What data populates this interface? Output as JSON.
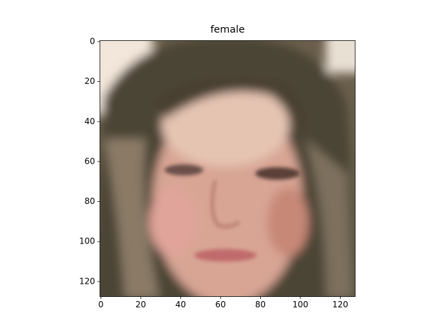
{
  "chart_data": {
    "type": "image",
    "title": "female",
    "xlim": [
      -0.5,
      127.5
    ],
    "ylim": [
      127.5,
      -0.5
    ],
    "xticks": [
      0,
      20,
      40,
      60,
      80,
      100,
      120
    ],
    "yticks": [
      0,
      20,
      40,
      60,
      80,
      100,
      120
    ]
  }
}
